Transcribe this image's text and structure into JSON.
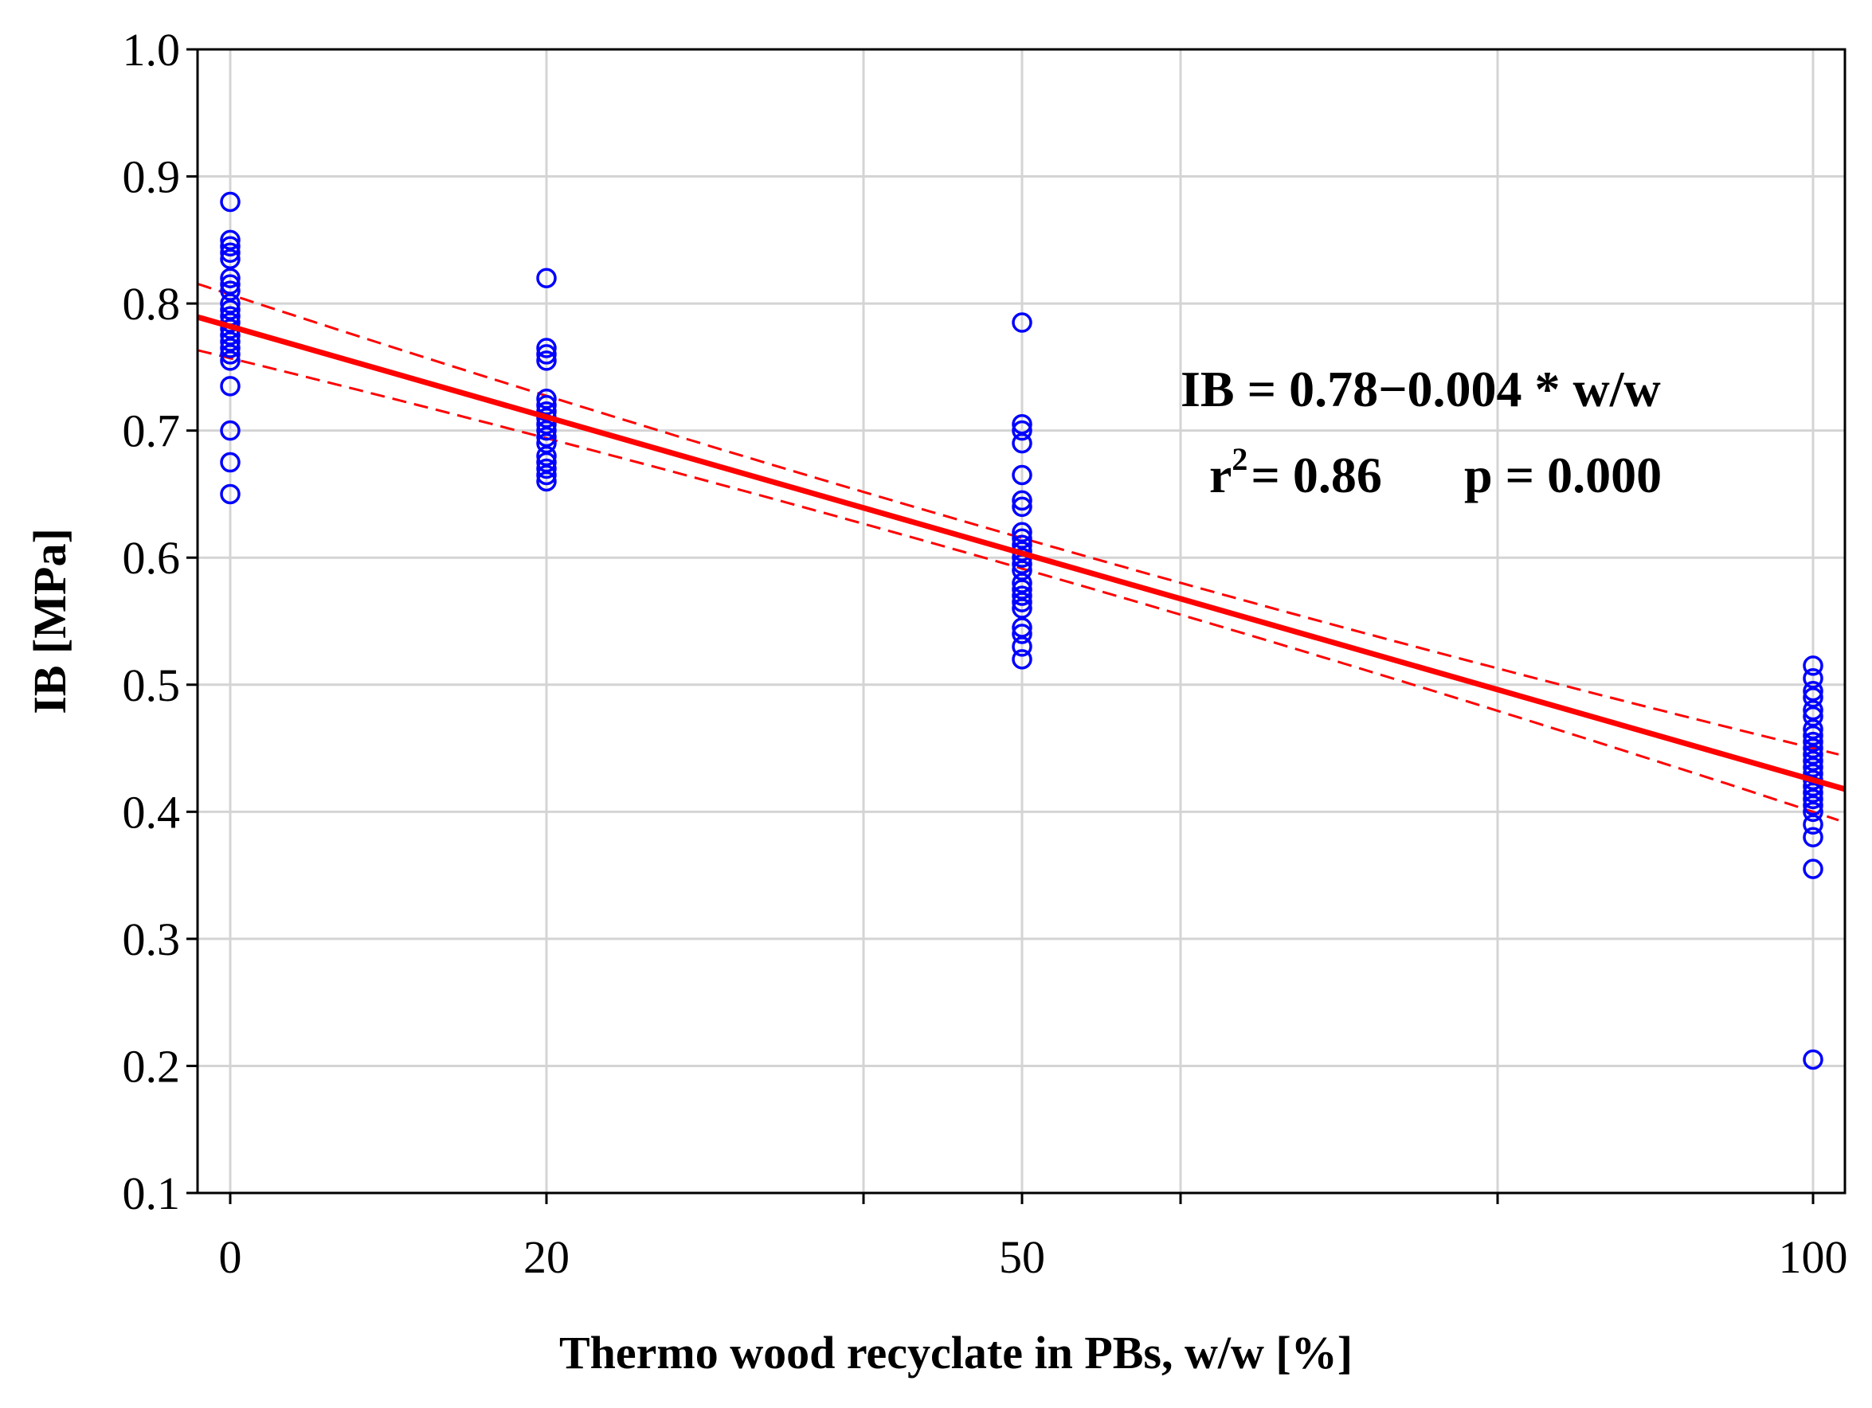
{
  "chart_data": {
    "type": "scatter",
    "title": "",
    "xlabel": "Thermo wood recyclate in PBs, w/w  [%]",
    "ylabel": "IB  [MPa]",
    "x_tick_labels": [
      "0",
      "20",
      "50",
      "100"
    ],
    "y_tick_labels": [
      "0.1",
      "0.2",
      "0.3",
      "0.4",
      "0.5",
      "0.6",
      "0.7",
      "0.8",
      "0.9",
      "1.0"
    ],
    "y_ticks": [
      0.1,
      0.2,
      0.3,
      0.4,
      0.5,
      0.6,
      0.7,
      0.8,
      0.9,
      1.0
    ],
    "ylim": [
      0.1,
      1.0
    ],
    "grid": true,
    "marker_color": "#0000ff",
    "fit_color": "#ff0000",
    "series": [
      {
        "groups": [
          {
            "x": "0",
            "y": [
              0.88,
              0.85,
              0.845,
              0.84,
              0.835,
              0.82,
              0.815,
              0.81,
              0.8,
              0.795,
              0.79,
              0.785,
              0.78,
              0.775,
              0.77,
              0.765,
              0.76,
              0.755,
              0.735,
              0.7,
              0.675,
              0.65
            ]
          },
          {
            "x": "20",
            "y": [
              0.82,
              0.765,
              0.76,
              0.755,
              0.725,
              0.72,
              0.715,
              0.71,
              0.705,
              0.7,
              0.695,
              0.69,
              0.68,
              0.675,
              0.67,
              0.665,
              0.66
            ]
          },
          {
            "x": "50",
            "y": [
              0.785,
              0.705,
              0.7,
              0.69,
              0.665,
              0.645,
              0.64,
              0.62,
              0.615,
              0.61,
              0.605,
              0.6,
              0.595,
              0.59,
              0.58,
              0.575,
              0.57,
              0.565,
              0.56,
              0.545,
              0.54,
              0.53,
              0.52
            ]
          },
          {
            "x": "100",
            "y": [
              0.515,
              0.505,
              0.495,
              0.49,
              0.48,
              0.475,
              0.465,
              0.46,
              0.455,
              0.45,
              0.445,
              0.44,
              0.435,
              0.43,
              0.425,
              0.42,
              0.415,
              0.41,
              0.405,
              0.4,
              0.39,
              0.38,
              0.355,
              0.205
            ]
          }
        ]
      }
    ],
    "fit_line": {
      "x": [
        "0",
        "100"
      ],
      "y": [
        0.782,
        0.425
      ]
    },
    "annotations": {
      "equation": "IB = 0.78−0.004 * w/w",
      "r2_label": "r",
      "r2_exp": "2",
      "r2_value": "= 0.86",
      "p_value": "p = 0.000"
    }
  }
}
